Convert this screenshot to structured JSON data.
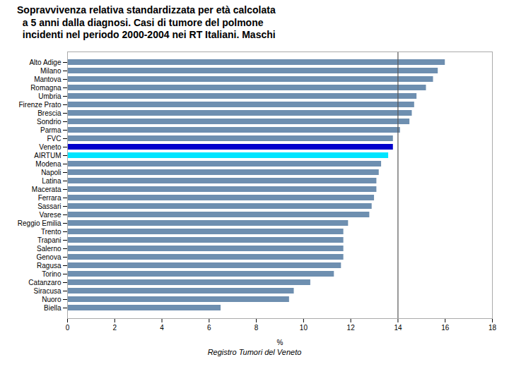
{
  "chart_data": {
    "type": "bar",
    "orientation": "horizontal",
    "title": "Sopravvivenza relativa standardizzata per età calcolata\n  a 5 anni dalla diagnosi. Casi di tumore del polmone\n  incidenti nel periodo 2000-2004 nei RT Italiani. Maschi",
    "xlabel": "%",
    "caption": "Registro Tumori del Veneto",
    "categories": [
      "Alto Adige",
      "Milano",
      "Mantova",
      "Romagna",
      "Umbria",
      "Firenze Prato",
      "Brescia",
      "Sondrio",
      "Parma",
      "FVC",
      "Veneto",
      "AIRTUM",
      "Modena",
      "Napoli",
      "Latina",
      "Macerata",
      "Ferrara",
      "Sassari",
      "Varese",
      "Reggio Emilia",
      "Trento",
      "Trapani",
      "Salerno",
      "Genova",
      "Ragusa",
      "Torino",
      "Catanzaro",
      "Siracusa",
      "Nuoro",
      "Biella"
    ],
    "values": [
      16.0,
      15.7,
      15.5,
      15.2,
      14.8,
      14.7,
      14.6,
      14.5,
      14.1,
      13.8,
      13.8,
      13.6,
      13.3,
      13.2,
      13.1,
      13.1,
      13.0,
      12.9,
      12.8,
      11.9,
      11.7,
      11.7,
      11.7,
      11.7,
      11.6,
      11.3,
      10.3,
      9.6,
      9.4,
      6.5
    ],
    "colors": [
      "#6e8fb0",
      "#6e8fb0",
      "#6e8fb0",
      "#6e8fb0",
      "#6e8fb0",
      "#6e8fb0",
      "#6e8fb0",
      "#6e8fb0",
      "#6e8fb0",
      "#6e8fb0",
      "#0000cc",
      "#00e5ff",
      "#6e8fb0",
      "#6e8fb0",
      "#6e8fb0",
      "#6e8fb0",
      "#6e8fb0",
      "#6e8fb0",
      "#6e8fb0",
      "#6e8fb0",
      "#6e8fb0",
      "#6e8fb0",
      "#6e8fb0",
      "#6e8fb0",
      "#6e8fb0",
      "#6e8fb0",
      "#6e8fb0",
      "#6e8fb0",
      "#6e8fb0",
      "#6e8fb0"
    ],
    "xlim": [
      0,
      18
    ],
    "xticks": [
      0,
      2,
      4,
      6,
      8,
      10,
      12,
      14,
      16,
      18
    ],
    "reference_line": {
      "x": 14.0,
      "color": "#555555"
    },
    "grid": false
  }
}
